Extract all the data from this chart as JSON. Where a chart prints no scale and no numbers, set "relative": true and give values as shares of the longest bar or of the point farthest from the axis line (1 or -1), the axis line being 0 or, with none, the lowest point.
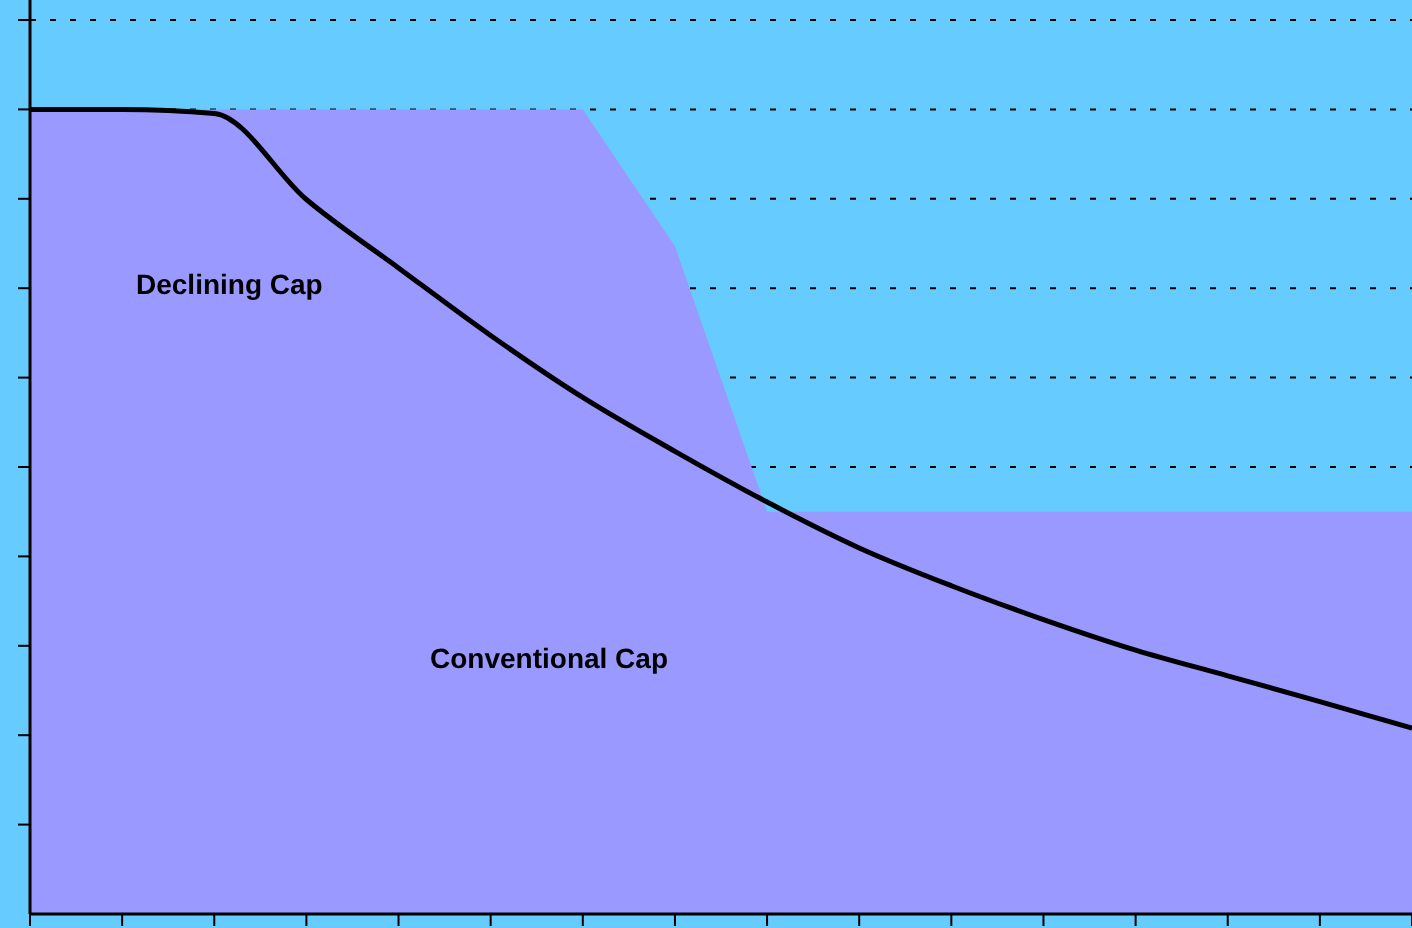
{
  "chart_data": {
    "type": "area",
    "relative": true,
    "grid": "y",
    "categories": [
      null,
      null,
      null,
      null,
      null,
      null,
      null,
      null,
      null,
      null,
      null,
      null,
      null,
      null,
      null,
      null
    ],
    "series": [
      {
        "name": "Conventional Cap",
        "color": "#9999ff",
        "values": [
          1,
          1,
          1,
          1,
          1,
          1,
          1,
          0.83,
          0.5,
          0.5,
          0.5,
          0.5,
          0.5,
          0.5,
          0.5,
          0.5
        ]
      },
      {
        "name": "Declining Cap",
        "type": "line",
        "color": "#000000",
        "values": [
          1,
          1,
          0.995,
          0.888,
          0.803,
          0.719,
          0.642,
          0.575,
          0.512,
          0.455,
          0.408,
          0.366,
          0.328,
          0.296,
          0.264,
          0.231
        ]
      }
    ]
  }
}
